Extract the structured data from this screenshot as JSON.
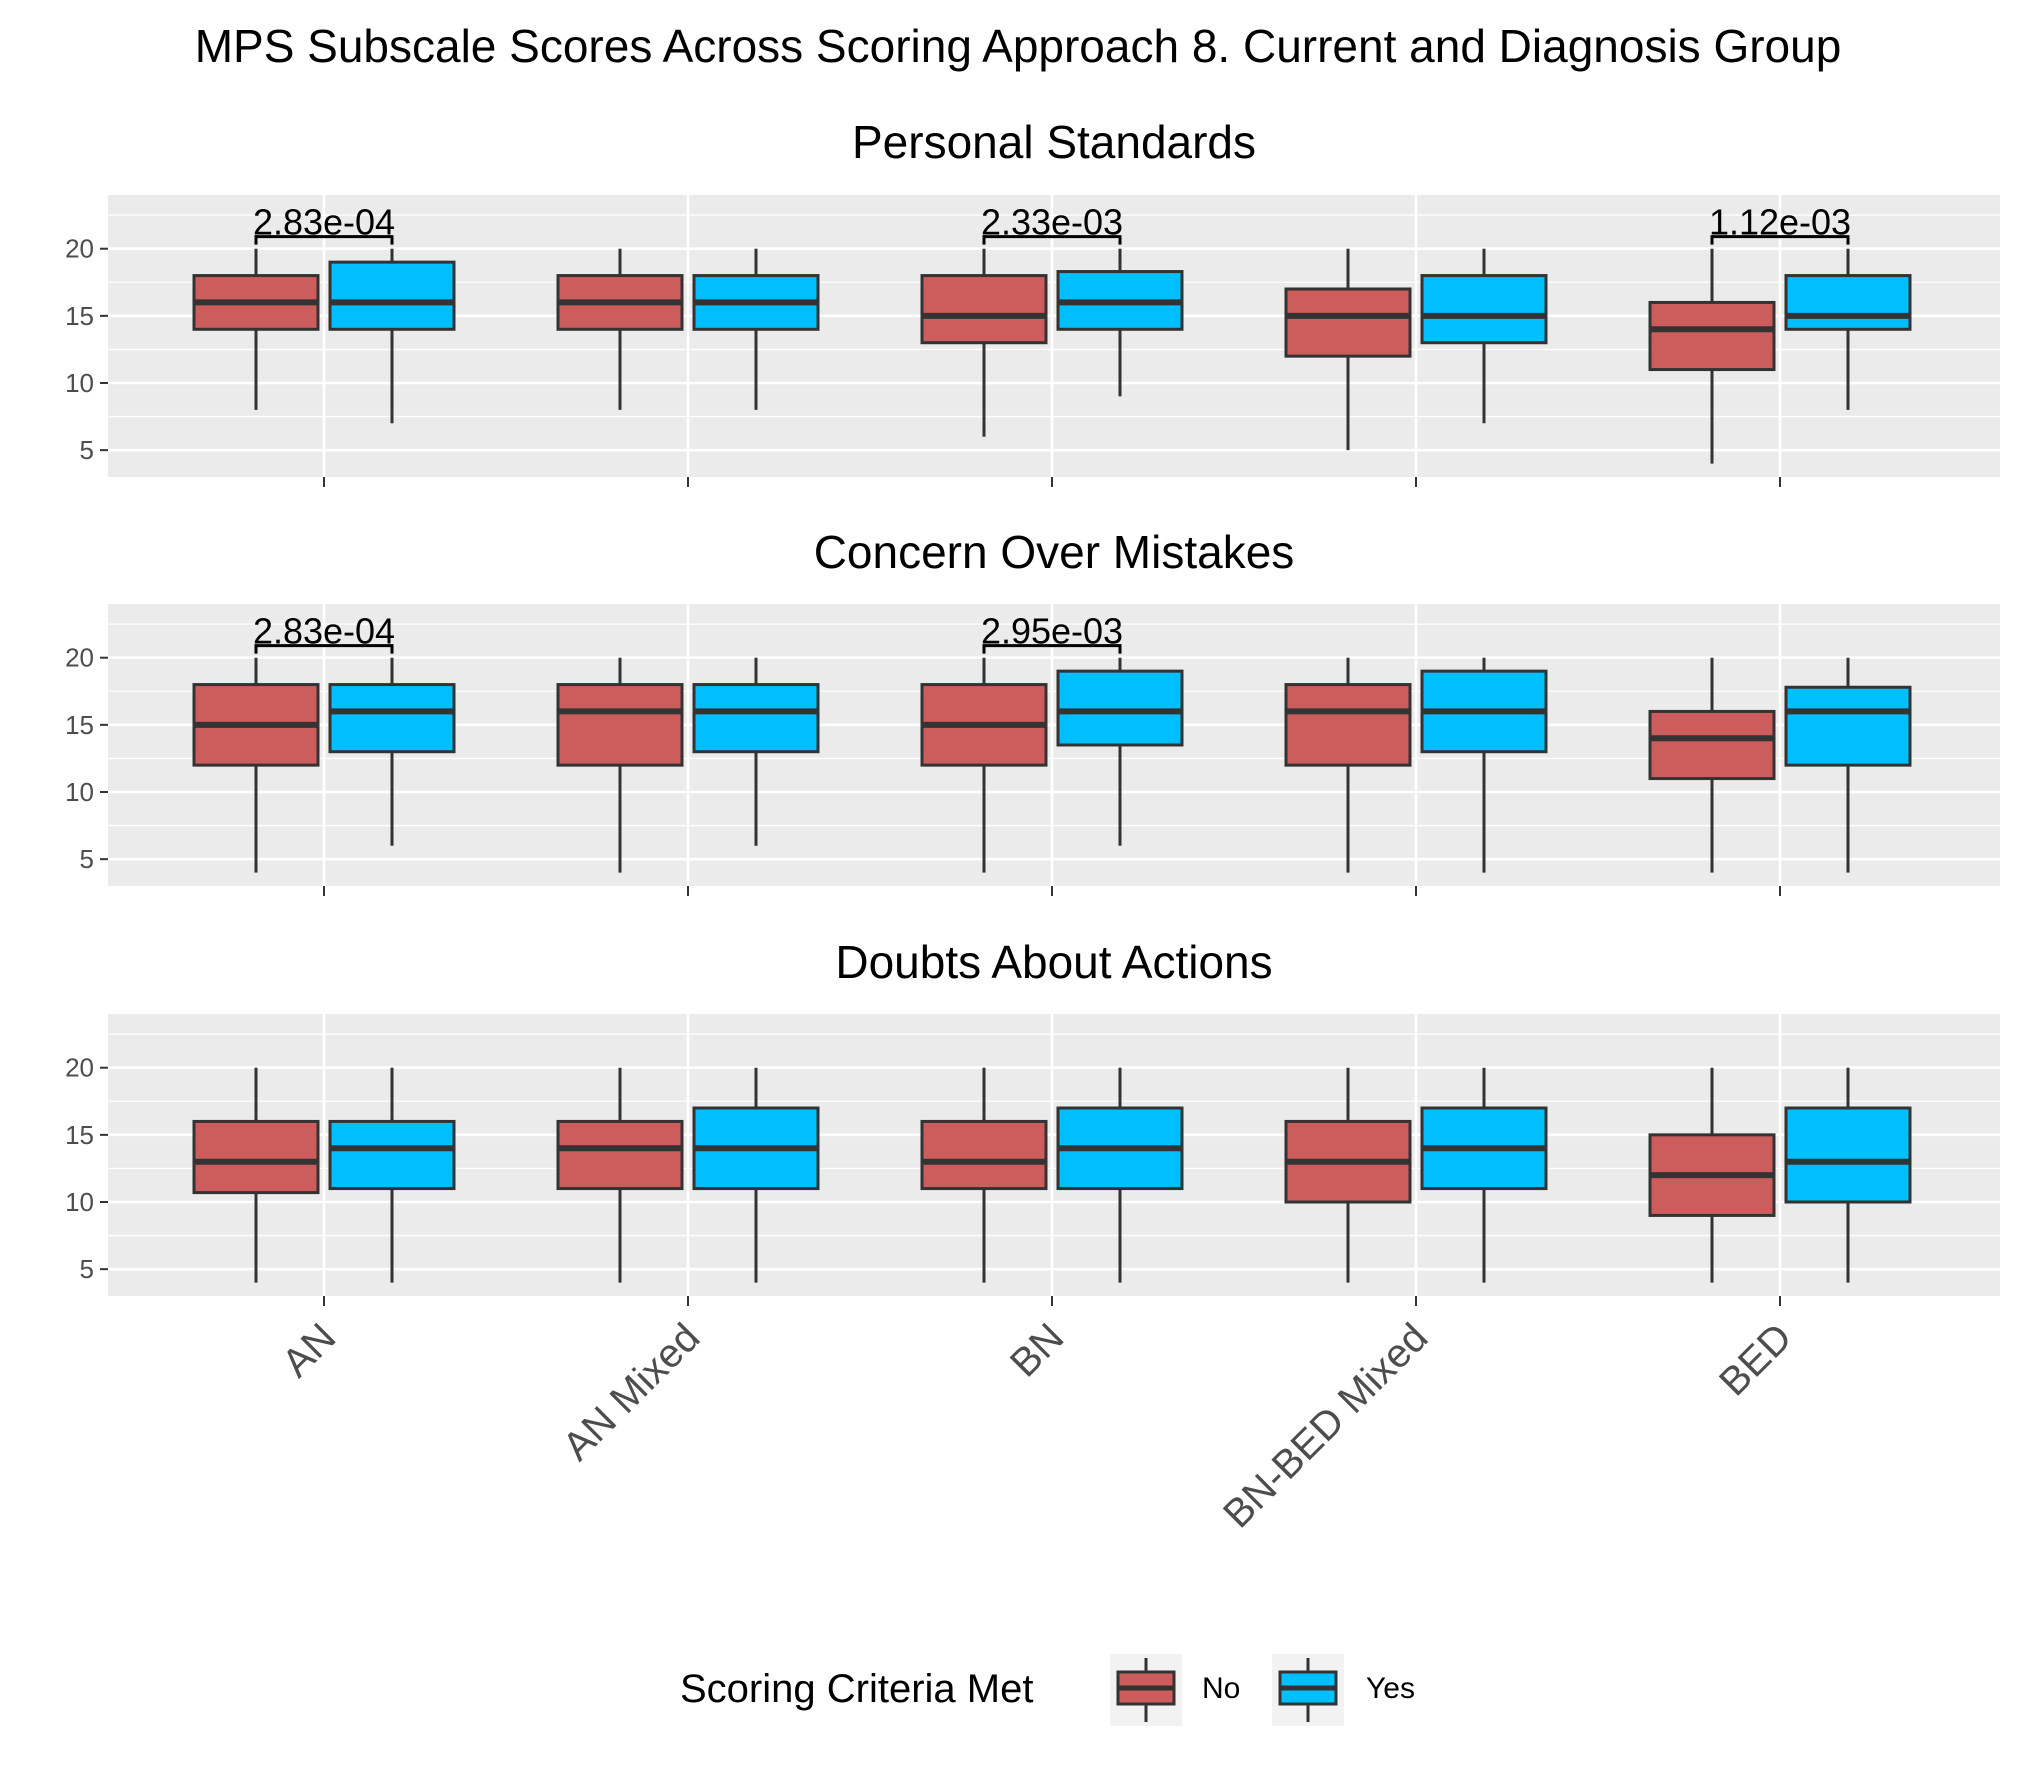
{
  "chart_data": {
    "type": "box",
    "title": "MPS Subscale Scores Across Scoring Approach 8. Current and Diagnosis Group",
    "categories": [
      "AN",
      "AN Mixed",
      "BN",
      "BN-BED Mixed",
      "BED"
    ],
    "ylim": [
      3,
      24
    ],
    "yticks": [
      5,
      10,
      15,
      20
    ],
    "grid": true,
    "legend": {
      "title": "Scoring Criteria Met",
      "position": "bottom",
      "entries": [
        {
          "label": "No",
          "color": "#cd5c5c"
        },
        {
          "label": "Yes",
          "color": "#00bfff"
        }
      ]
    },
    "panels": [
      {
        "title": "Personal Standards",
        "groups": [
          {
            "category": "AN",
            "no": {
              "min": 8,
              "q1": 14,
              "median": 16,
              "q3": 18,
              "max": 20
            },
            "yes": {
              "min": 7,
              "q1": 14,
              "median": 16,
              "q3": 19,
              "max": 20
            },
            "pvalue": "2.83e-04"
          },
          {
            "category": "AN Mixed",
            "no": {
              "min": 8,
              "q1": 14,
              "median": 16,
              "q3": 18,
              "max": 20
            },
            "yes": {
              "min": 8,
              "q1": 14,
              "median": 16,
              "q3": 18,
              "max": 20
            },
            "pvalue": ""
          },
          {
            "category": "BN",
            "no": {
              "min": 6,
              "q1": 13,
              "median": 15,
              "q3": 18,
              "max": 20
            },
            "yes": {
              "min": 9,
              "q1": 14,
              "median": 16,
              "q3": 18.3,
              "max": 20
            },
            "pvalue": "2.33e-03"
          },
          {
            "category": "BN-BED Mixed",
            "no": {
              "min": 5,
              "q1": 12,
              "median": 15,
              "q3": 17,
              "max": 20
            },
            "yes": {
              "min": 7,
              "q1": 13,
              "median": 15,
              "q3": 18,
              "max": 20
            },
            "pvalue": ""
          },
          {
            "category": "BED",
            "no": {
              "min": 4,
              "q1": 11,
              "median": 14,
              "q3": 16,
              "max": 20
            },
            "yes": {
              "min": 8,
              "q1": 14,
              "median": 15,
              "q3": 18,
              "max": 20
            },
            "pvalue": "1.12e-03"
          }
        ]
      },
      {
        "title": "Concern Over Mistakes",
        "groups": [
          {
            "category": "AN",
            "no": {
              "min": 4,
              "q1": 12,
              "median": 15,
              "q3": 18,
              "max": 20
            },
            "yes": {
              "min": 6,
              "q1": 13,
              "median": 16,
              "q3": 18,
              "max": 20
            },
            "pvalue": "2.83e-04"
          },
          {
            "category": "AN Mixed",
            "no": {
              "min": 4,
              "q1": 12,
              "median": 16,
              "q3": 18,
              "max": 20
            },
            "yes": {
              "min": 6,
              "q1": 13,
              "median": 16,
              "q3": 18,
              "max": 20
            },
            "pvalue": ""
          },
          {
            "category": "BN",
            "no": {
              "min": 4,
              "q1": 12,
              "median": 15,
              "q3": 18,
              "max": 20
            },
            "yes": {
              "min": 6,
              "q1": 13.5,
              "median": 16,
              "q3": 19,
              "max": 20
            },
            "pvalue": "2.95e-03"
          },
          {
            "category": "BN-BED Mixed",
            "no": {
              "min": 4,
              "q1": 12,
              "median": 16,
              "q3": 18,
              "max": 20
            },
            "yes": {
              "min": 4,
              "q1": 13,
              "median": 16,
              "q3": 19,
              "max": 20
            },
            "pvalue": ""
          },
          {
            "category": "BED",
            "no": {
              "min": 4,
              "q1": 11,
              "median": 14,
              "q3": 16,
              "max": 20
            },
            "yes": {
              "min": 4,
              "q1": 12,
              "median": 16,
              "q3": 17.8,
              "max": 20
            },
            "pvalue": ""
          }
        ]
      },
      {
        "title": "Doubts About Actions",
        "groups": [
          {
            "category": "AN",
            "no": {
              "min": 4,
              "q1": 10.7,
              "median": 13,
              "q3": 16,
              "max": 20
            },
            "yes": {
              "min": 4,
              "q1": 11,
              "median": 14,
              "q3": 16,
              "max": 20
            },
            "pvalue": ""
          },
          {
            "category": "AN Mixed",
            "no": {
              "min": 4,
              "q1": 11,
              "median": 14,
              "q3": 16,
              "max": 20
            },
            "yes": {
              "min": 4,
              "q1": 11,
              "median": 14,
              "q3": 17,
              "max": 20
            },
            "pvalue": ""
          },
          {
            "category": "BN",
            "no": {
              "min": 4,
              "q1": 11,
              "median": 13,
              "q3": 16,
              "max": 20
            },
            "yes": {
              "min": 4,
              "q1": 11,
              "median": 14,
              "q3": 17,
              "max": 20
            },
            "pvalue": ""
          },
          {
            "category": "BN-BED Mixed",
            "no": {
              "min": 4,
              "q1": 10,
              "median": 13,
              "q3": 16,
              "max": 20
            },
            "yes": {
              "min": 4,
              "q1": 11,
              "median": 14,
              "q3": 17,
              "max": 20
            },
            "pvalue": ""
          },
          {
            "category": "BED",
            "no": {
              "min": 4,
              "q1": 9,
              "median": 12,
              "q3": 15,
              "max": 20
            },
            "yes": {
              "min": 4,
              "q1": 10,
              "median": 13,
              "q3": 17,
              "max": 20
            },
            "pvalue": ""
          }
        ]
      }
    ]
  }
}
